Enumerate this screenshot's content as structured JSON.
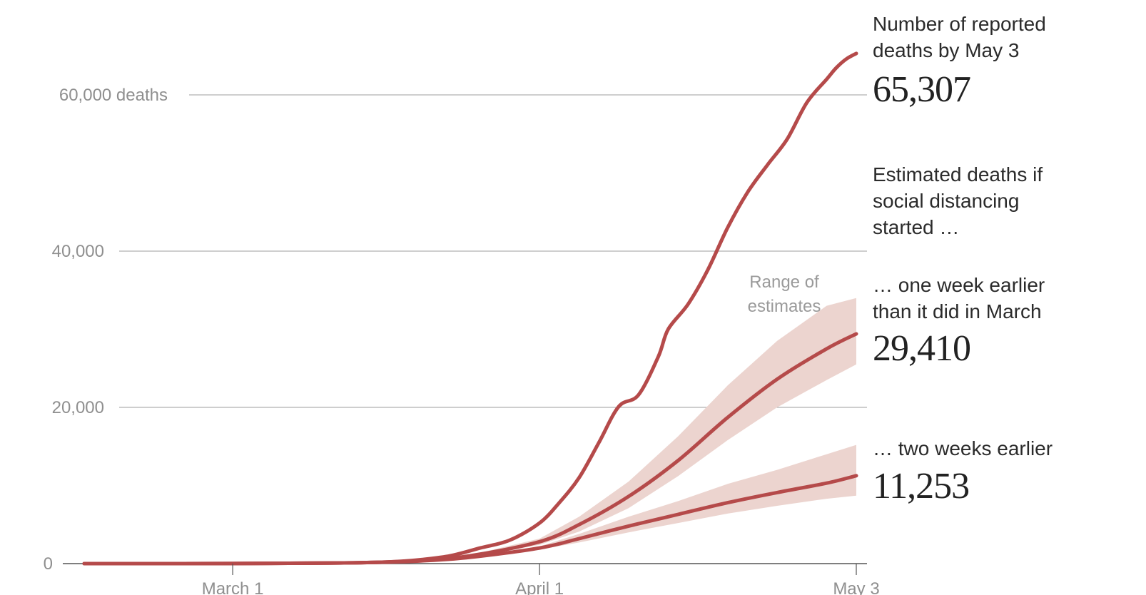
{
  "colors": {
    "line": "#b54a4a",
    "band": "#ecd4cf",
    "grid": "#9c9c9c",
    "axis_text": "#8f8f8f",
    "text": "#2b2b2b"
  },
  "chart_data": {
    "type": "line",
    "title": "",
    "xlabel": "",
    "ylabel": "",
    "x_dates": [
      "2020-02-15",
      "2020-05-03"
    ],
    "x_ticks": [
      {
        "date": "2020-03-01",
        "label": "March 1"
      },
      {
        "date": "2020-04-01",
        "label": "April 1"
      },
      {
        "date": "2020-05-03",
        "label": "May 3"
      }
    ],
    "ylim": [
      0,
      60000
    ],
    "y_ticks": [
      {
        "value": 0,
        "label": "0"
      },
      {
        "value": 20000,
        "label": "20,000"
      },
      {
        "value": 40000,
        "label": "40,000"
      },
      {
        "value": 60000,
        "label": "60,000 deaths"
      }
    ],
    "grid": true,
    "series": [
      {
        "key": "reported",
        "x": [
          "2020-02-15",
          "2020-03-01",
          "2020-03-10",
          "2020-03-15",
          "2020-03-18",
          "2020-03-20",
          "2020-03-23",
          "2020-03-26",
          "2020-03-29",
          "2020-04-01",
          "2020-04-03",
          "2020-04-05",
          "2020-04-07",
          "2020-04-09",
          "2020-04-11",
          "2020-04-13",
          "2020-04-14",
          "2020-04-16",
          "2020-04-18",
          "2020-04-20",
          "2020-04-22",
          "2020-04-24",
          "2020-04-26",
          "2020-04-28",
          "2020-04-30",
          "2020-05-01",
          "2020-05-02",
          "2020-05-03"
        ],
        "y": [
          0,
          5,
          60,
          150,
          300,
          500,
          1000,
          2000,
          3000,
          5200,
          7800,
          11000,
          15500,
          20100,
          21600,
          26500,
          30000,
          33200,
          37600,
          43000,
          47500,
          51000,
          54300,
          59000,
          62000,
          63500,
          64600,
          65307
        ]
      },
      {
        "key": "one_week",
        "x": [
          "2020-02-15",
          "2020-03-01",
          "2020-03-10",
          "2020-03-15",
          "2020-03-20",
          "2020-03-25",
          "2020-04-01",
          "2020-04-05",
          "2020-04-10",
          "2020-04-15",
          "2020-04-20",
          "2020-04-25",
          "2020-04-30",
          "2020-05-03"
        ],
        "y": [
          0,
          5,
          60,
          150,
          400,
          1000,
          2800,
          5000,
          8600,
          13200,
          18700,
          23600,
          27500,
          29410
        ],
        "low": [
          0,
          5,
          60,
          150,
          380,
          900,
          2400,
          4100,
          7100,
          11200,
          15800,
          20000,
          23500,
          25500
        ],
        "high": [
          0,
          5,
          60,
          150,
          420,
          1100,
          3200,
          6000,
          10500,
          16300,
          22800,
          28500,
          33000,
          34000
        ]
      },
      {
        "key": "two_weeks",
        "x": [
          "2020-02-15",
          "2020-03-01",
          "2020-03-10",
          "2020-03-15",
          "2020-03-20",
          "2020-03-25",
          "2020-04-01",
          "2020-04-05",
          "2020-04-10",
          "2020-04-15",
          "2020-04-20",
          "2020-04-25",
          "2020-04-30",
          "2020-05-03"
        ],
        "y": [
          0,
          5,
          60,
          150,
          350,
          800,
          2000,
          3200,
          4800,
          6300,
          7800,
          9100,
          10300,
          11253
        ],
        "low": [
          0,
          5,
          60,
          150,
          340,
          750,
          1800,
          2700,
          4000,
          5200,
          6400,
          7400,
          8300,
          8700
        ],
        "high": [
          0,
          5,
          60,
          150,
          360,
          850,
          2200,
          3800,
          6000,
          8000,
          10200,
          12000,
          14000,
          15200
        ]
      }
    ],
    "annotations": {
      "range_label": [
        "Range of",
        "estimates"
      ],
      "reported_heading": "Number of reported deaths by May 3",
      "reported_value": "65,307",
      "estimated_heading": "Estimated deaths if social distancing started …",
      "one_week_heading": "… one week earlier than it did in March",
      "one_week_value": "29,410",
      "two_weeks_heading": "… two weeks earlier",
      "two_weeks_value": "11,253"
    }
  }
}
